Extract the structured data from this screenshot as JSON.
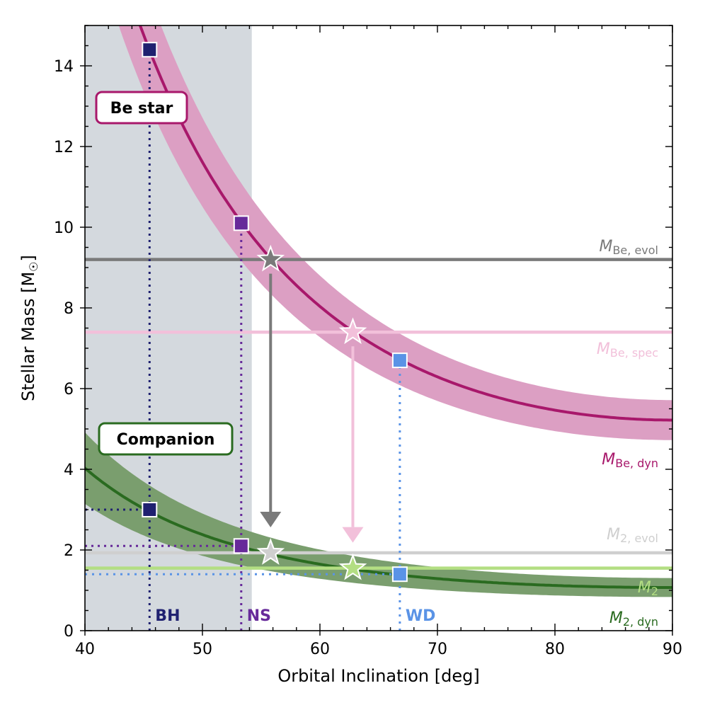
{
  "chart_data": {
    "type": "line",
    "xlabel": "Orbital Inclination [deg]",
    "ylabel_prefix": "Stellar Mass [M",
    "ylabel_sun": "☉",
    "ylabel_suffix": "]",
    "xlim": [
      40,
      90
    ],
    "ylim": [
      0,
      15
    ],
    "xticks": [
      40,
      50,
      60,
      70,
      80,
      90
    ],
    "yticks": [
      0,
      2,
      4,
      6,
      8,
      10,
      12,
      14
    ],
    "shaded_region": {
      "x_from": 40,
      "x_to": 54.2,
      "color": "#d4d9de"
    },
    "colors": {
      "be_dyn": "#a8186b",
      "be_band": "#dc9fc3",
      "comp_dyn": "#2a6b20",
      "comp_band": "#7a9e6e",
      "be_evol": "#7a7a7a",
      "be_spec": "#f2c0da",
      "m2_evol": "#cfcfcf",
      "m2": "#b3de83",
      "bh": "#1f2170",
      "ns": "#672a9a",
      "wd": "#5a93e6"
    },
    "series": [
      {
        "name": "M_Be,dyn",
        "label_main": "M",
        "label_sub": "Be, dyn",
        "m_at_90": 5.22,
        "band_frac": 0.095
      },
      {
        "name": "M_2,dyn",
        "label_main": "M",
        "label_sub": "2, dyn",
        "m_at_90": 1.07,
        "band_frac": 0.22
      }
    ],
    "horizontal_lines": [
      {
        "name": "M_Be,evol",
        "label_main": "M",
        "label_sub": "Be, evol",
        "value": 9.2
      },
      {
        "name": "M_Be,spec",
        "label_main": "M",
        "label_sub": "Be, spec",
        "value": 7.4
      },
      {
        "name": "M_2,evol",
        "label_main": "M",
        "label_sub": "2, evol",
        "value": 1.93
      },
      {
        "name": "M_2",
        "label_main": "M",
        "label_sub": "2",
        "value": 1.55
      }
    ],
    "markers": [
      {
        "name": "BH",
        "incl": 45.5,
        "be_mass": 14.4,
        "comp_mass": 3.0
      },
      {
        "name": "NS",
        "incl": 53.3,
        "be_mass": 10.1,
        "comp_mass": 2.1
      },
      {
        "name": "WD",
        "incl": 66.8,
        "be_mass": 6.7,
        "comp_mass": 1.4
      }
    ],
    "stars": [
      {
        "name": "evol",
        "incl": 55.8,
        "be_mass": 9.2,
        "comp_mass": 1.93
      },
      {
        "name": "spec",
        "incl": 62.8,
        "be_mass": 7.4,
        "comp_mass": 1.55
      }
    ],
    "region_labels": [
      "BH",
      "NS",
      "WD"
    ],
    "box_labels": {
      "be": "Be star",
      "companion": "Companion"
    }
  }
}
